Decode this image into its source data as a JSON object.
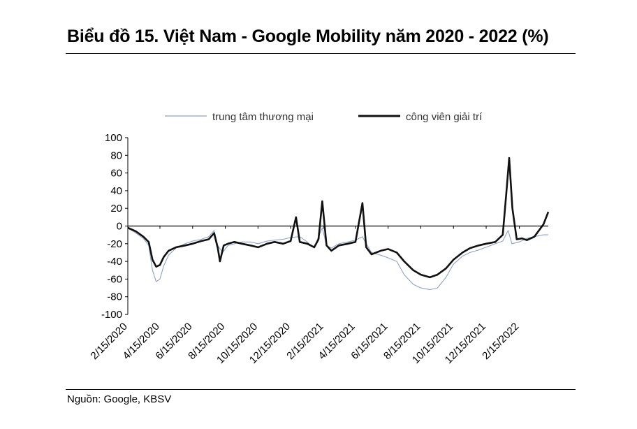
{
  "header": {
    "title": "Biểu đồ 15. Việt Nam - Google Mobility năm 2020 - 2022 (%)"
  },
  "footer": {
    "source": "Nguồn: Google, KBSV"
  },
  "colors": {
    "retail": "#8ea2c4",
    "parks": "#111111",
    "axis": "#000000"
  },
  "chart_data": {
    "type": "line",
    "title": "Biểu đồ 15. Việt Nam - Google Mobility năm 2020 - 2022 (%)",
    "xlabel": "",
    "ylabel": "",
    "ylim": [
      -100,
      100
    ],
    "yticks": [
      100,
      80,
      60,
      40,
      20,
      0,
      -20,
      -40,
      -60,
      -80,
      -100
    ],
    "xlim": [
      "2020-02-15",
      "2022-04-10"
    ],
    "xticks": [
      "2/15/2020",
      "4/15/2020",
      "6/15/2020",
      "8/15/2020",
      "10/15/2020",
      "12/15/2020",
      "2/15/2021",
      "4/15/2021",
      "6/15/2021",
      "8/15/2021",
      "10/15/2021",
      "12/15/2021",
      "2/15/2022"
    ],
    "legend_position": "top",
    "grid": false,
    "series": [
      {
        "name": "trung tâm thương mại",
        "color": "#8ea2c4",
        "points": [
          [
            "2020-02-15",
            -2
          ],
          [
            "2020-03-01",
            -8
          ],
          [
            "2020-03-15",
            -14
          ],
          [
            "2020-03-25",
            -22
          ],
          [
            "2020-04-01",
            -50
          ],
          [
            "2020-04-08",
            -63
          ],
          [
            "2020-04-15",
            -60
          ],
          [
            "2020-04-22",
            -45
          ],
          [
            "2020-05-01",
            -33
          ],
          [
            "2020-05-15",
            -25
          ],
          [
            "2020-06-01",
            -20
          ],
          [
            "2020-06-15",
            -17
          ],
          [
            "2020-07-01",
            -15
          ],
          [
            "2020-07-15",
            -12
          ],
          [
            "2020-07-25",
            -5
          ],
          [
            "2020-08-01",
            -22
          ],
          [
            "2020-08-10",
            -30
          ],
          [
            "2020-08-20",
            -22
          ],
          [
            "2020-09-01",
            -20
          ],
          [
            "2020-09-15",
            -18
          ],
          [
            "2020-10-01",
            -18
          ],
          [
            "2020-10-15",
            -20
          ],
          [
            "2020-11-01",
            -17
          ],
          [
            "2020-11-15",
            -16
          ],
          [
            "2020-12-01",
            -15
          ],
          [
            "2020-12-15",
            -13
          ],
          [
            "2021-01-01",
            -12
          ],
          [
            "2021-01-15",
            -18
          ],
          [
            "2021-01-28",
            -25
          ],
          [
            "2021-02-05",
            -12
          ],
          [
            "2021-02-12",
            -2
          ],
          [
            "2021-02-20",
            -22
          ],
          [
            "2021-03-01",
            -25
          ],
          [
            "2021-03-15",
            -20
          ],
          [
            "2021-04-01",
            -18
          ],
          [
            "2021-04-15",
            -16
          ],
          [
            "2021-04-28",
            -12
          ],
          [
            "2021-05-05",
            -20
          ],
          [
            "2021-05-15",
            -30
          ],
          [
            "2021-06-01",
            -33
          ],
          [
            "2021-06-15",
            -36
          ],
          [
            "2021-07-01",
            -40
          ],
          [
            "2021-07-15",
            -55
          ],
          [
            "2021-08-01",
            -66
          ],
          [
            "2021-08-15",
            -70
          ],
          [
            "2021-09-01",
            -72
          ],
          [
            "2021-09-15",
            -70
          ],
          [
            "2021-10-01",
            -58
          ],
          [
            "2021-10-15",
            -43
          ],
          [
            "2021-11-01",
            -34
          ],
          [
            "2021-11-15",
            -30
          ],
          [
            "2021-12-01",
            -27
          ],
          [
            "2021-12-15",
            -24
          ],
          [
            "2022-01-01",
            -20
          ],
          [
            "2022-01-15",
            -17
          ],
          [
            "2022-01-25",
            -5
          ],
          [
            "2022-02-01",
            -20
          ],
          [
            "2022-02-15",
            -18
          ],
          [
            "2022-03-01",
            -14
          ],
          [
            "2022-03-15",
            -12
          ],
          [
            "2022-04-01",
            -10
          ],
          [
            "2022-04-10",
            -10
          ]
        ]
      },
      {
        "name": "công viên giải trí",
        "color": "#111111",
        "points": [
          [
            "2020-02-15",
            -2
          ],
          [
            "2020-03-01",
            -6
          ],
          [
            "2020-03-15",
            -12
          ],
          [
            "2020-03-25",
            -18
          ],
          [
            "2020-04-01",
            -38
          ],
          [
            "2020-04-08",
            -46
          ],
          [
            "2020-04-15",
            -44
          ],
          [
            "2020-04-22",
            -35
          ],
          [
            "2020-05-01",
            -28
          ],
          [
            "2020-05-15",
            -24
          ],
          [
            "2020-06-01",
            -22
          ],
          [
            "2020-06-15",
            -20
          ],
          [
            "2020-07-01",
            -17
          ],
          [
            "2020-07-15",
            -15
          ],
          [
            "2020-07-25",
            -8
          ],
          [
            "2020-08-01",
            -25
          ],
          [
            "2020-08-05",
            -40
          ],
          [
            "2020-08-12",
            -22
          ],
          [
            "2020-08-20",
            -20
          ],
          [
            "2020-09-01",
            -18
          ],
          [
            "2020-09-15",
            -20
          ],
          [
            "2020-10-01",
            -22
          ],
          [
            "2020-10-15",
            -24
          ],
          [
            "2020-11-01",
            -20
          ],
          [
            "2020-11-15",
            -18
          ],
          [
            "2020-12-01",
            -20
          ],
          [
            "2020-12-15",
            -17
          ],
          [
            "2020-12-25",
            10
          ],
          [
            "2021-01-01",
            -18
          ],
          [
            "2021-01-15",
            -20
          ],
          [
            "2021-01-28",
            -24
          ],
          [
            "2021-02-05",
            -15
          ],
          [
            "2021-02-12",
            28
          ],
          [
            "2021-02-20",
            -22
          ],
          [
            "2021-03-01",
            -28
          ],
          [
            "2021-03-15",
            -22
          ],
          [
            "2021-04-01",
            -20
          ],
          [
            "2021-04-15",
            -18
          ],
          [
            "2021-04-28",
            26
          ],
          [
            "2021-05-05",
            -24
          ],
          [
            "2021-05-15",
            -32
          ],
          [
            "2021-06-01",
            -28
          ],
          [
            "2021-06-15",
            -26
          ],
          [
            "2021-07-01",
            -30
          ],
          [
            "2021-07-15",
            -40
          ],
          [
            "2021-08-01",
            -50
          ],
          [
            "2021-08-15",
            -55
          ],
          [
            "2021-09-01",
            -58
          ],
          [
            "2021-09-15",
            -55
          ],
          [
            "2021-10-01",
            -48
          ],
          [
            "2021-10-15",
            -38
          ],
          [
            "2021-11-01",
            -30
          ],
          [
            "2021-11-15",
            -25
          ],
          [
            "2021-12-01",
            -22
          ],
          [
            "2021-12-15",
            -20
          ],
          [
            "2022-01-01",
            -18
          ],
          [
            "2022-01-15",
            -10
          ],
          [
            "2022-01-22",
            40
          ],
          [
            "2022-01-27",
            77
          ],
          [
            "2022-02-02",
            20
          ],
          [
            "2022-02-10",
            -15
          ],
          [
            "2022-02-20",
            -14
          ],
          [
            "2022-03-01",
            -16
          ],
          [
            "2022-03-15",
            -12
          ],
          [
            "2022-04-01",
            2
          ],
          [
            "2022-04-10",
            16
          ]
        ]
      }
    ]
  }
}
